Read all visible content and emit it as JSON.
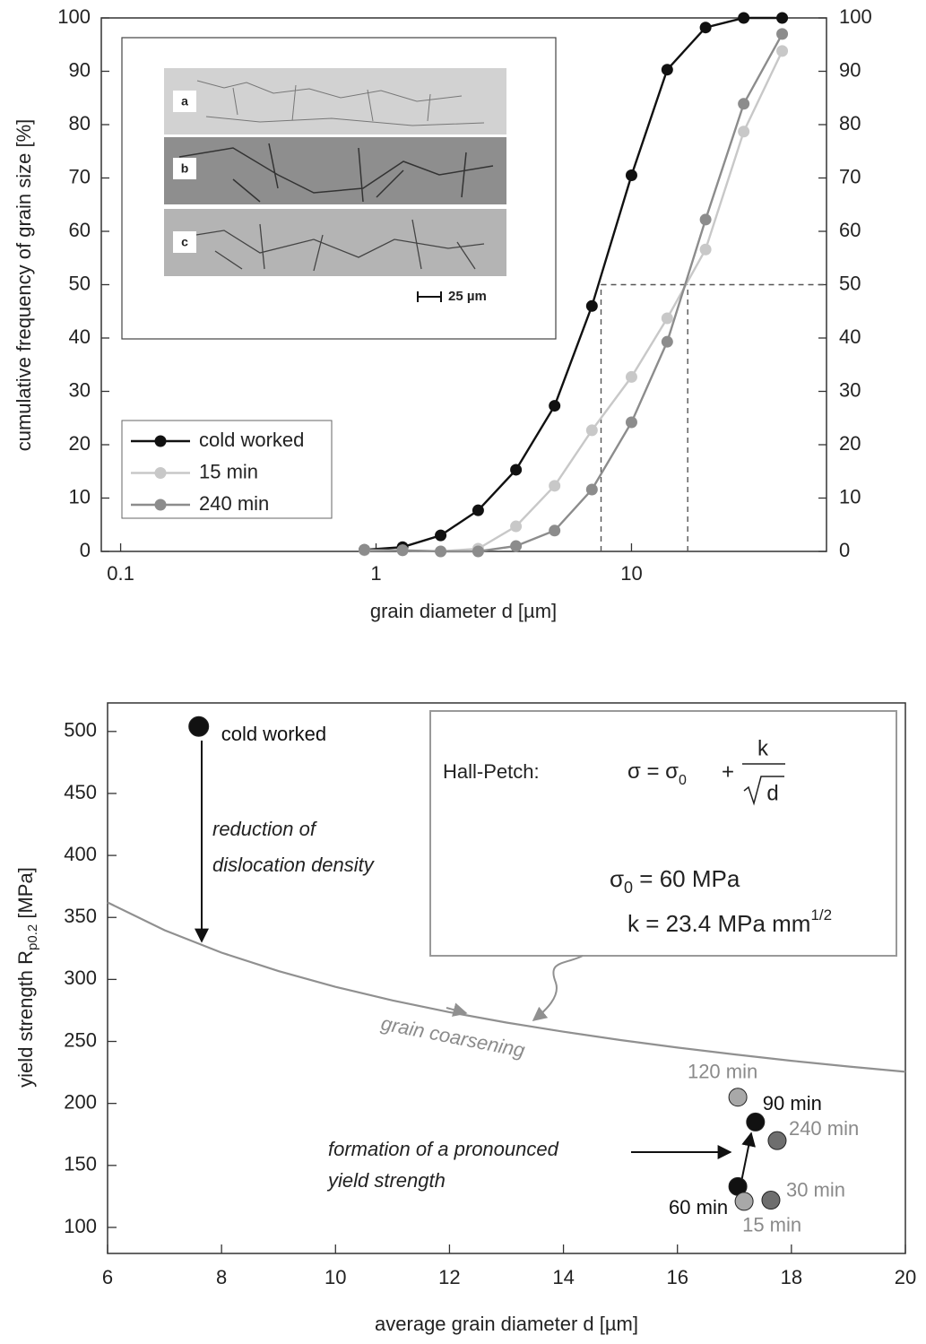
{
  "chart_data": [
    {
      "type": "line",
      "x_label": "grain diameter d [µm]",
      "y_label": "cumulative frequency of grain size [%]",
      "x_scale": "log",
      "xlim": [
        0.084,
        58
      ],
      "xticks": [
        0.1,
        1,
        10
      ],
      "ylim": [
        0,
        100
      ],
      "yticks": [
        0,
        10,
        20,
        30,
        40,
        50,
        60,
        70,
        80,
        90,
        100
      ],
      "y2lim": [
        0,
        100
      ],
      "y2ticks": [
        0,
        10,
        20,
        30,
        40,
        50,
        60,
        70,
        80,
        90,
        100
      ],
      "x": [
        0.9,
        1.27,
        1.79,
        2.51,
        3.53,
        5.0,
        7.0,
        10,
        13.8,
        19.5,
        27.5,
        38.9
      ],
      "series": [
        {
          "name": "cold worked",
          "color": "#111111",
          "values": [
            0.3,
            0.8,
            3,
            7.7,
            15.3,
            27.3,
            46,
            70.5,
            90.3,
            98.2,
            100,
            100
          ]
        },
        {
          "name": "15 min",
          "color": "#c8c8c8",
          "values": [
            0.2,
            0.2,
            0,
            0.5,
            4.7,
            12.3,
            22.7,
            32.7,
            43.7,
            56.6,
            78.7,
            93.8
          ]
        },
        {
          "name": "240 min",
          "color": "#8c8c8c",
          "values": [
            0.3,
            0.2,
            0,
            0,
            1,
            3.9,
            11.6,
            24.2,
            39.3,
            62.2,
            83.9,
            97
          ]
        }
      ],
      "legend": "lower left",
      "ref_x": [
        7.6,
        16.6
      ],
      "ref_y": 50,
      "inset": {
        "labels": [
          "a",
          "b",
          "c"
        ],
        "scale_bar": "25 µm"
      }
    },
    {
      "type": "scatter",
      "x_label": "average grain diameter d [µm]",
      "y_label": {
        "main": "yield strength R",
        "sub": "p0.2",
        "unit": " [MPa]"
      },
      "xlim": [
        6,
        20
      ],
      "xticks": [
        6,
        8,
        10,
        12,
        14,
        16,
        18,
        20
      ],
      "ylim": [
        79,
        523
      ],
      "yticks": [
        100,
        150,
        200,
        250,
        300,
        350,
        400,
        450,
        500
      ],
      "points": [
        {
          "label": "cold worked",
          "x": 7.6,
          "y": 504,
          "color": "#111111"
        },
        {
          "label": "120 min",
          "x": 17.06,
          "y": 205,
          "color": "#a8a8a8"
        },
        {
          "label": "90 min",
          "x": 17.37,
          "y": 185,
          "color": "#111111"
        },
        {
          "label": "240 min",
          "x": 17.75,
          "y": 170,
          "color": "#6e6e6e"
        },
        {
          "label": "60 min",
          "x": 17.06,
          "y": 133,
          "color": "#111111"
        },
        {
          "label": "15 min",
          "x": 17.17,
          "y": 121,
          "color": "#a8a8a8"
        },
        {
          "label": "30 min",
          "x": 17.64,
          "y": 122,
          "color": "#6e6e6e"
        }
      ],
      "curve": {
        "color": "#909090",
        "x": [
          6,
          7,
          8,
          9,
          10,
          11,
          12,
          13,
          14,
          15,
          16,
          17,
          18,
          19,
          20
        ],
        "values": [
          362.1,
          339.7,
          321.6,
          306.7,
          294,
          283.1,
          273.6,
          265.2,
          257.8,
          251.1,
          245.0,
          239.5,
          234.4,
          229.8,
          225.5
        ]
      },
      "annotations": {
        "reduction": [
          "reduction of",
          "dislocation density"
        ],
        "coarsening": "grain coarsening",
        "formation": [
          "formation of a pronounced",
          "yield strength"
        ]
      },
      "box": {
        "title": "Hall-Petch:",
        "formula": {
          "lhs": "σ = σ",
          "lhs_sub": "0",
          "plus": "+",
          "num": "k",
          "den": "d"
        },
        "sigma0": {
          "symbol": "σ",
          "sub": "0",
          "rest": " = 60 MPa"
        },
        "k": {
          "main": "k = 23.4 MPa mm",
          "sup": "1/2"
        }
      }
    }
  ]
}
